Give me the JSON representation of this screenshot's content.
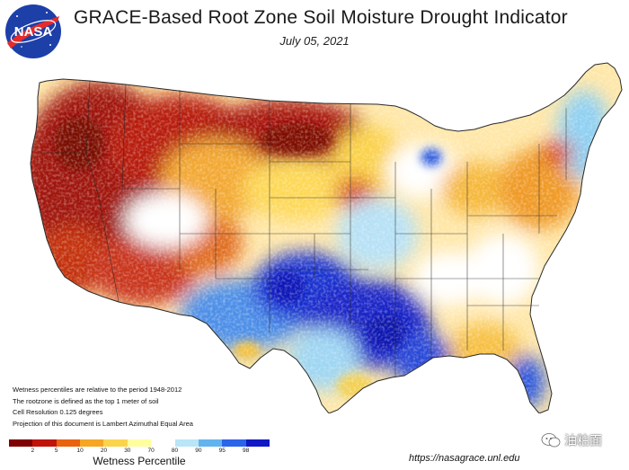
{
  "header": {
    "title": "GRACE-Based Root Zone Soil  Moisture Drought Indicator",
    "date": "July 05, 2021",
    "logo_text": "NASA"
  },
  "notes": [
    "Wetness percentiles are relative to the period 1948-2012",
    "The rootzone is defined as the top 1 meter of soil",
    "Cell Resolution 0.125 degrees",
    "Projection of this document is Lambert Azimuthal Equal Area"
  ],
  "legend": {
    "title": "Wetness Percentile",
    "ticks": [
      "2",
      "5",
      "10",
      "20",
      "30",
      "70",
      "80",
      "90",
      "95",
      "98"
    ],
    "colors": [
      "#7f0000",
      "#c0140a",
      "#e8620f",
      "#f5a623",
      "#fbd44c",
      "#fffe9e",
      "#ffffff",
      "#b9e5f6",
      "#63b3ef",
      "#2b64e8",
      "#1018c6"
    ]
  },
  "footer": {
    "url": "https://nasagrace.unl.edu",
    "watermark": "油粕面"
  },
  "map_colors": {
    "very_dry": "#8e0a05",
    "dry": "#d33b10",
    "moderately_dry": "#f09a27",
    "slightly_dry": "#fbd54a",
    "near_normal": "#ffffff",
    "slightly_wet": "#a9dcf4",
    "wet": "#4a90e8",
    "very_wet": "#1a2ad0",
    "boundary": "#2a2a2a"
  }
}
